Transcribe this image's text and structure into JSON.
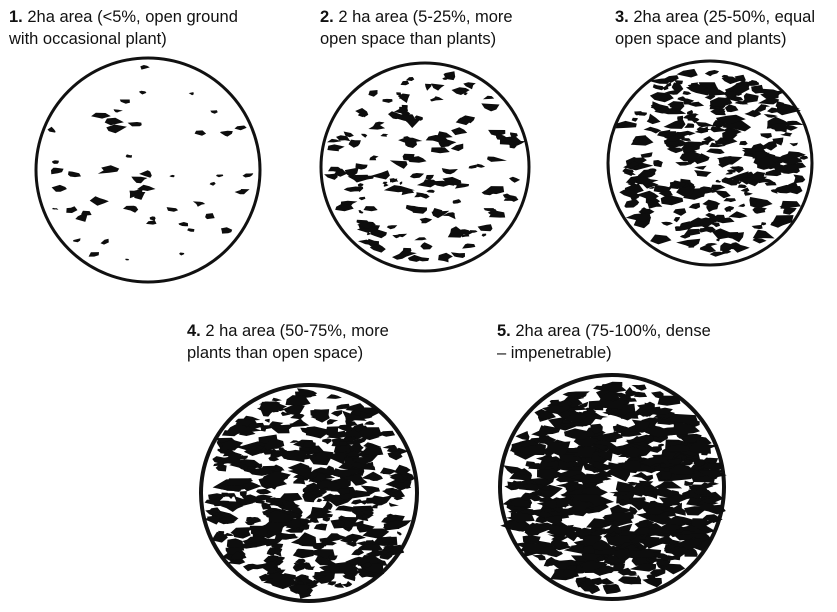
{
  "panels": [
    {
      "number": "1.",
      "line1": " 2ha area (<5%, open ground",
      "line2": "with occasional plant)",
      "density": 0.03
    },
    {
      "number": "2.",
      "line1": " 2 ha area (5-25%, more",
      "line2": "open space than plants)",
      "density": 0.12
    },
    {
      "number": "3.",
      "line1": " 2ha area (25-50%, equal",
      "line2": "open space and plants)",
      "density": 0.35
    },
    {
      "number": "4.",
      "line1": " 2 ha area (50-75%, more",
      "line2": "plants than open space)",
      "density": 0.6
    },
    {
      "number": "5.",
      "line1": " 2ha area (75-100%, dense",
      "line2": "– impenetrable)",
      "density": 0.85
    }
  ]
}
